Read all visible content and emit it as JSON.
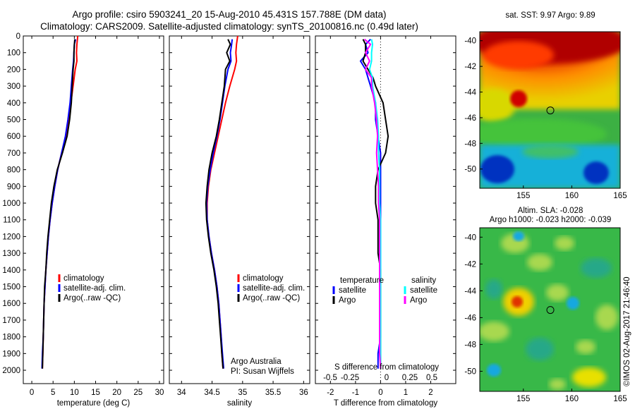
{
  "title": {
    "line1": "Argo profile: csiro 5903241_20 15-Aug-2010 45.431S 157.788E (DM data)",
    "line2": "Climatology: CARS2009. Satellite-adjusted climatology: synTS_20100816.nc (0.49d later)"
  },
  "colors": {
    "climatology": "#ff0000",
    "satellite": "#0000ff",
    "argo": "#000000",
    "salinity_satellite": "#00ffff",
    "salinity_argo": "#ff00ff"
  },
  "profile_axes": {
    "depth_ticks": [
      "0",
      "100",
      "200",
      "300",
      "400",
      "500",
      "600",
      "700",
      "800",
      "900",
      "1000",
      "1100",
      "1200",
      "1300",
      "1400",
      "1500",
      "1600",
      "1700",
      "1800",
      "1900",
      "2000"
    ],
    "depth_range": [
      0,
      2080
    ]
  },
  "chart_data": [
    {
      "type": "line",
      "panel": "temperature",
      "xlabel": "temperature (deg C)",
      "xlim": [
        -2,
        31
      ],
      "ylim": [
        2080,
        0
      ],
      "xticks": [
        0,
        5,
        10,
        15,
        20,
        25,
        30
      ],
      "xtick_labels": [
        "0",
        "5",
        "10",
        "15",
        "20",
        "25",
        "30"
      ],
      "legend": [
        "climatology",
        "satellite-adj. clim.",
        "Argo(..raw -QC)"
      ],
      "series": [
        {
          "name": "climatology",
          "color": "#ff0000",
          "depth": [
            0,
            50,
            100,
            150,
            200,
            300,
            400,
            500,
            600,
            700,
            800,
            900,
            1000,
            1100,
            1200,
            1300,
            1400,
            1500,
            1600,
            1700,
            1800,
            1900,
            1990
          ],
          "values": [
            10.8,
            10.6,
            10.5,
            10.6,
            10.2,
            9.7,
            9.2,
            8.7,
            8.0,
            7.0,
            6.1,
            5.4,
            4.8,
            4.3,
            3.9,
            3.6,
            3.3,
            3.1,
            2.9,
            2.8,
            2.7,
            2.6,
            2.5
          ]
        },
        {
          "name": "satellite-adj. clim.",
          "color": "#0000ff",
          "depth": [
            20,
            50,
            100,
            150,
            200,
            300,
            400,
            500,
            600,
            700,
            800,
            900,
            1000,
            1100,
            1200,
            1300,
            1400,
            1500,
            1600,
            1700,
            1800,
            1900,
            1990
          ],
          "values": [
            10.3,
            10.0,
            9.9,
            9.8,
            9.6,
            9.3,
            9.0,
            8.5,
            7.9,
            7.0,
            6.1,
            5.4,
            4.8,
            4.3,
            3.9,
            3.6,
            3.3,
            3.1,
            2.9,
            2.8,
            2.7,
            2.5,
            2.4
          ]
        },
        {
          "name": "Argo(..raw -QC)",
          "color": "#000000",
          "depth": [
            20,
            50,
            100,
            150,
            200,
            300,
            400,
            500,
            600,
            700,
            800,
            900,
            1000,
            1100,
            1200,
            1300,
            1400,
            1500,
            1600,
            1700,
            1800,
            1900,
            1990
          ],
          "values": [
            10.1,
            10.0,
            9.9,
            9.9,
            9.7,
            9.5,
            9.3,
            8.9,
            8.3,
            7.2,
            6.0,
            5.2,
            4.6,
            4.2,
            3.8,
            3.5,
            3.3,
            3.0,
            2.9,
            2.8,
            2.7,
            2.6,
            2.5
          ]
        }
      ]
    },
    {
      "type": "line",
      "panel": "salinity",
      "xlabel": "salinity",
      "xlim": [
        33.8,
        36.1
      ],
      "ylim": [
        2080,
        0
      ],
      "xticks": [
        34,
        34.5,
        35,
        35.5,
        36
      ],
      "xtick_labels": [
        "34",
        "34.5",
        "35",
        "35.5",
        "36"
      ],
      "legend": [
        "climatology",
        "satellite-adj. clim.",
        "Argo(..raw -QC)"
      ],
      "annotations": [
        "Argo Australia",
        "PI: Susan Wijffels"
      ],
      "series": [
        {
          "name": "climatology",
          "color": "#ff0000",
          "depth": [
            0,
            50,
            100,
            150,
            200,
            300,
            400,
            500,
            600,
            700,
            800,
            900,
            1000,
            1100,
            1200,
            1300,
            1400,
            1500,
            1600,
            1700,
            1800,
            1900,
            1990
          ],
          "values": [
            34.92,
            34.9,
            34.89,
            34.9,
            34.87,
            34.79,
            34.72,
            34.66,
            34.6,
            34.54,
            34.48,
            34.44,
            34.42,
            34.42,
            34.45,
            34.49,
            34.54,
            34.58,
            34.61,
            34.63,
            34.65,
            34.66,
            34.68
          ]
        },
        {
          "name": "satellite-adj. clim.",
          "color": "#0000ff",
          "depth": [
            20,
            50,
            100,
            150,
            200,
            300,
            400,
            500,
            600,
            700,
            800,
            900,
            1000,
            1100,
            1200,
            1300,
            1400,
            1500,
            1600,
            1700,
            1800,
            1900,
            1990
          ],
          "values": [
            34.83,
            34.82,
            34.8,
            34.81,
            34.76,
            34.71,
            34.67,
            34.63,
            34.58,
            34.52,
            34.47,
            34.43,
            34.41,
            34.42,
            34.45,
            34.49,
            34.54,
            34.58,
            34.61,
            34.63,
            34.65,
            34.67,
            34.69
          ]
        },
        {
          "name": "Argo(..raw -QC)",
          "color": "#000000",
          "depth": [
            20,
            50,
            100,
            150,
            200,
            300,
            400,
            500,
            600,
            700,
            800,
            900,
            1000,
            1100,
            1200,
            1300,
            1400,
            1500,
            1600,
            1700,
            1800,
            1900,
            1990
          ],
          "values": [
            34.76,
            34.8,
            34.74,
            34.79,
            34.72,
            34.7,
            34.66,
            34.62,
            34.57,
            34.5,
            34.45,
            34.42,
            34.4,
            34.41,
            34.44,
            34.48,
            34.53,
            34.57,
            34.6,
            34.62,
            34.64,
            34.66,
            34.68
          ]
        }
      ]
    },
    {
      "type": "line",
      "panel": "differences",
      "xlabel": "T difference from climatology",
      "xlabel_top": "S difference from climatology",
      "xlim": [
        -2.6,
        3.0
      ],
      "ylim": [
        2080,
        0
      ],
      "xticks": [
        -2,
        -1,
        0,
        1,
        2
      ],
      "xtick_labels": [
        "-2",
        "-1",
        "0",
        "1",
        "2"
      ],
      "s_xtick_labels": [
        "-0.5",
        "-0.25",
        "0",
        "0.25",
        "0.5"
      ],
      "legend_temperature": {
        "heading": "temperature",
        "items": [
          "satellite",
          "Argo"
        ]
      },
      "legend_salinity": {
        "heading": "salinity",
        "items": [
          "satellite",
          "Argo"
        ]
      },
      "series": [
        {
          "name": "satellite",
          "group": "temperature",
          "color": "#0000ff",
          "depth": [
            20,
            50,
            100,
            150,
            200,
            250,
            300,
            400,
            500,
            600,
            700,
            800,
            900,
            1000,
            1100,
            1200,
            1300,
            1400,
            1500,
            1600,
            1700,
            1800,
            1900,
            1990
          ],
          "values": [
            -0.4,
            -0.6,
            -0.5,
            -0.8,
            -0.6,
            -0.5,
            -0.4,
            -0.2,
            -0.2,
            -0.1,
            0.0,
            0.0,
            0.0,
            0.0,
            0.0,
            0.0,
            0.0,
            0.0,
            0.0,
            0.0,
            0.0,
            0.0,
            -0.1,
            -0.1
          ]
        },
        {
          "name": "Argo",
          "group": "temperature",
          "color": "#000000",
          "depth": [
            20,
            50,
            100,
            150,
            200,
            250,
            300,
            400,
            500,
            600,
            700,
            800,
            900,
            1000,
            1100,
            1200,
            1300,
            1400,
            1500,
            1600,
            1700,
            1800,
            1900,
            1990
          ],
          "values": [
            -0.7,
            -0.6,
            -0.6,
            -0.7,
            -0.5,
            -0.3,
            -0.2,
            0.1,
            0.2,
            0.3,
            0.2,
            -0.1,
            -0.2,
            -0.2,
            -0.1,
            -0.1,
            -0.1,
            0.0,
            0.0,
            0.0,
            0.0,
            0.0,
            0.0,
            0.0
          ]
        },
        {
          "name": "satellite",
          "group": "salinity",
          "color": "#00ffff",
          "depth": [
            20,
            50,
            100,
            150,
            200,
            250,
            300,
            400,
            500,
            600,
            700,
            800,
            900,
            1000,
            1100,
            1200,
            1300,
            1400,
            1500,
            1600,
            1700,
            1800,
            1900,
            1990
          ],
          "values": [
            -0.09,
            -0.08,
            -0.09,
            -0.09,
            -0.11,
            -0.08,
            -0.08,
            -0.05,
            -0.03,
            -0.02,
            -0.02,
            -0.01,
            -0.01,
            -0.01,
            0.0,
            0.0,
            0.0,
            0.0,
            0.0,
            0.0,
            0.0,
            0.0,
            0.0,
            0.0
          ]
        },
        {
          "name": "Argo",
          "group": "salinity",
          "color": "#ff00ff",
          "depth": [
            20,
            50,
            100,
            150,
            200,
            250,
            300,
            400,
            500,
            600,
            700,
            800,
            900,
            1000,
            1100,
            1200,
            1300,
            1400,
            1500,
            1600,
            1700,
            1800,
            1900,
            1990
          ],
          "values": [
            -0.16,
            -0.1,
            -0.15,
            -0.11,
            -0.15,
            -0.09,
            -0.09,
            -0.06,
            -0.04,
            -0.03,
            -0.04,
            -0.03,
            -0.02,
            -0.02,
            -0.01,
            -0.01,
            -0.01,
            -0.01,
            -0.01,
            -0.01,
            -0.01,
            -0.01,
            -0.01,
            0.0
          ]
        }
      ]
    },
    {
      "type": "heatmap",
      "panel": "sst_map",
      "title": "sat. SST: 9.97 Argo: 9.89",
      "xlim": [
        150.5,
        165
      ],
      "ylim": [
        -51.5,
        -39.3
      ],
      "xticks": [
        155,
        160,
        165
      ],
      "yticks": [
        -40,
        -42,
        -44,
        -46,
        -48,
        -50
      ],
      "marker": {
        "lon": 157.788,
        "lat": -45.431
      },
      "colormap": "jet"
    },
    {
      "type": "heatmap",
      "panel": "sla_map",
      "title_line1": "Altim. SLA: -0.028",
      "title_line2": "Argo h1000: -0.023 h2000: -0.039",
      "xlim": [
        150.5,
        165
      ],
      "ylim": [
        -51.5,
        -39.3
      ],
      "xticks": [
        155,
        160,
        165
      ],
      "yticks": [
        -40,
        -42,
        -44,
        -46,
        -48,
        -50
      ],
      "marker": {
        "lon": 157.788,
        "lat": -45.431
      },
      "colormap": "jet"
    }
  ],
  "credit": "©IMOS 02-Aug-2017 21:46:40"
}
